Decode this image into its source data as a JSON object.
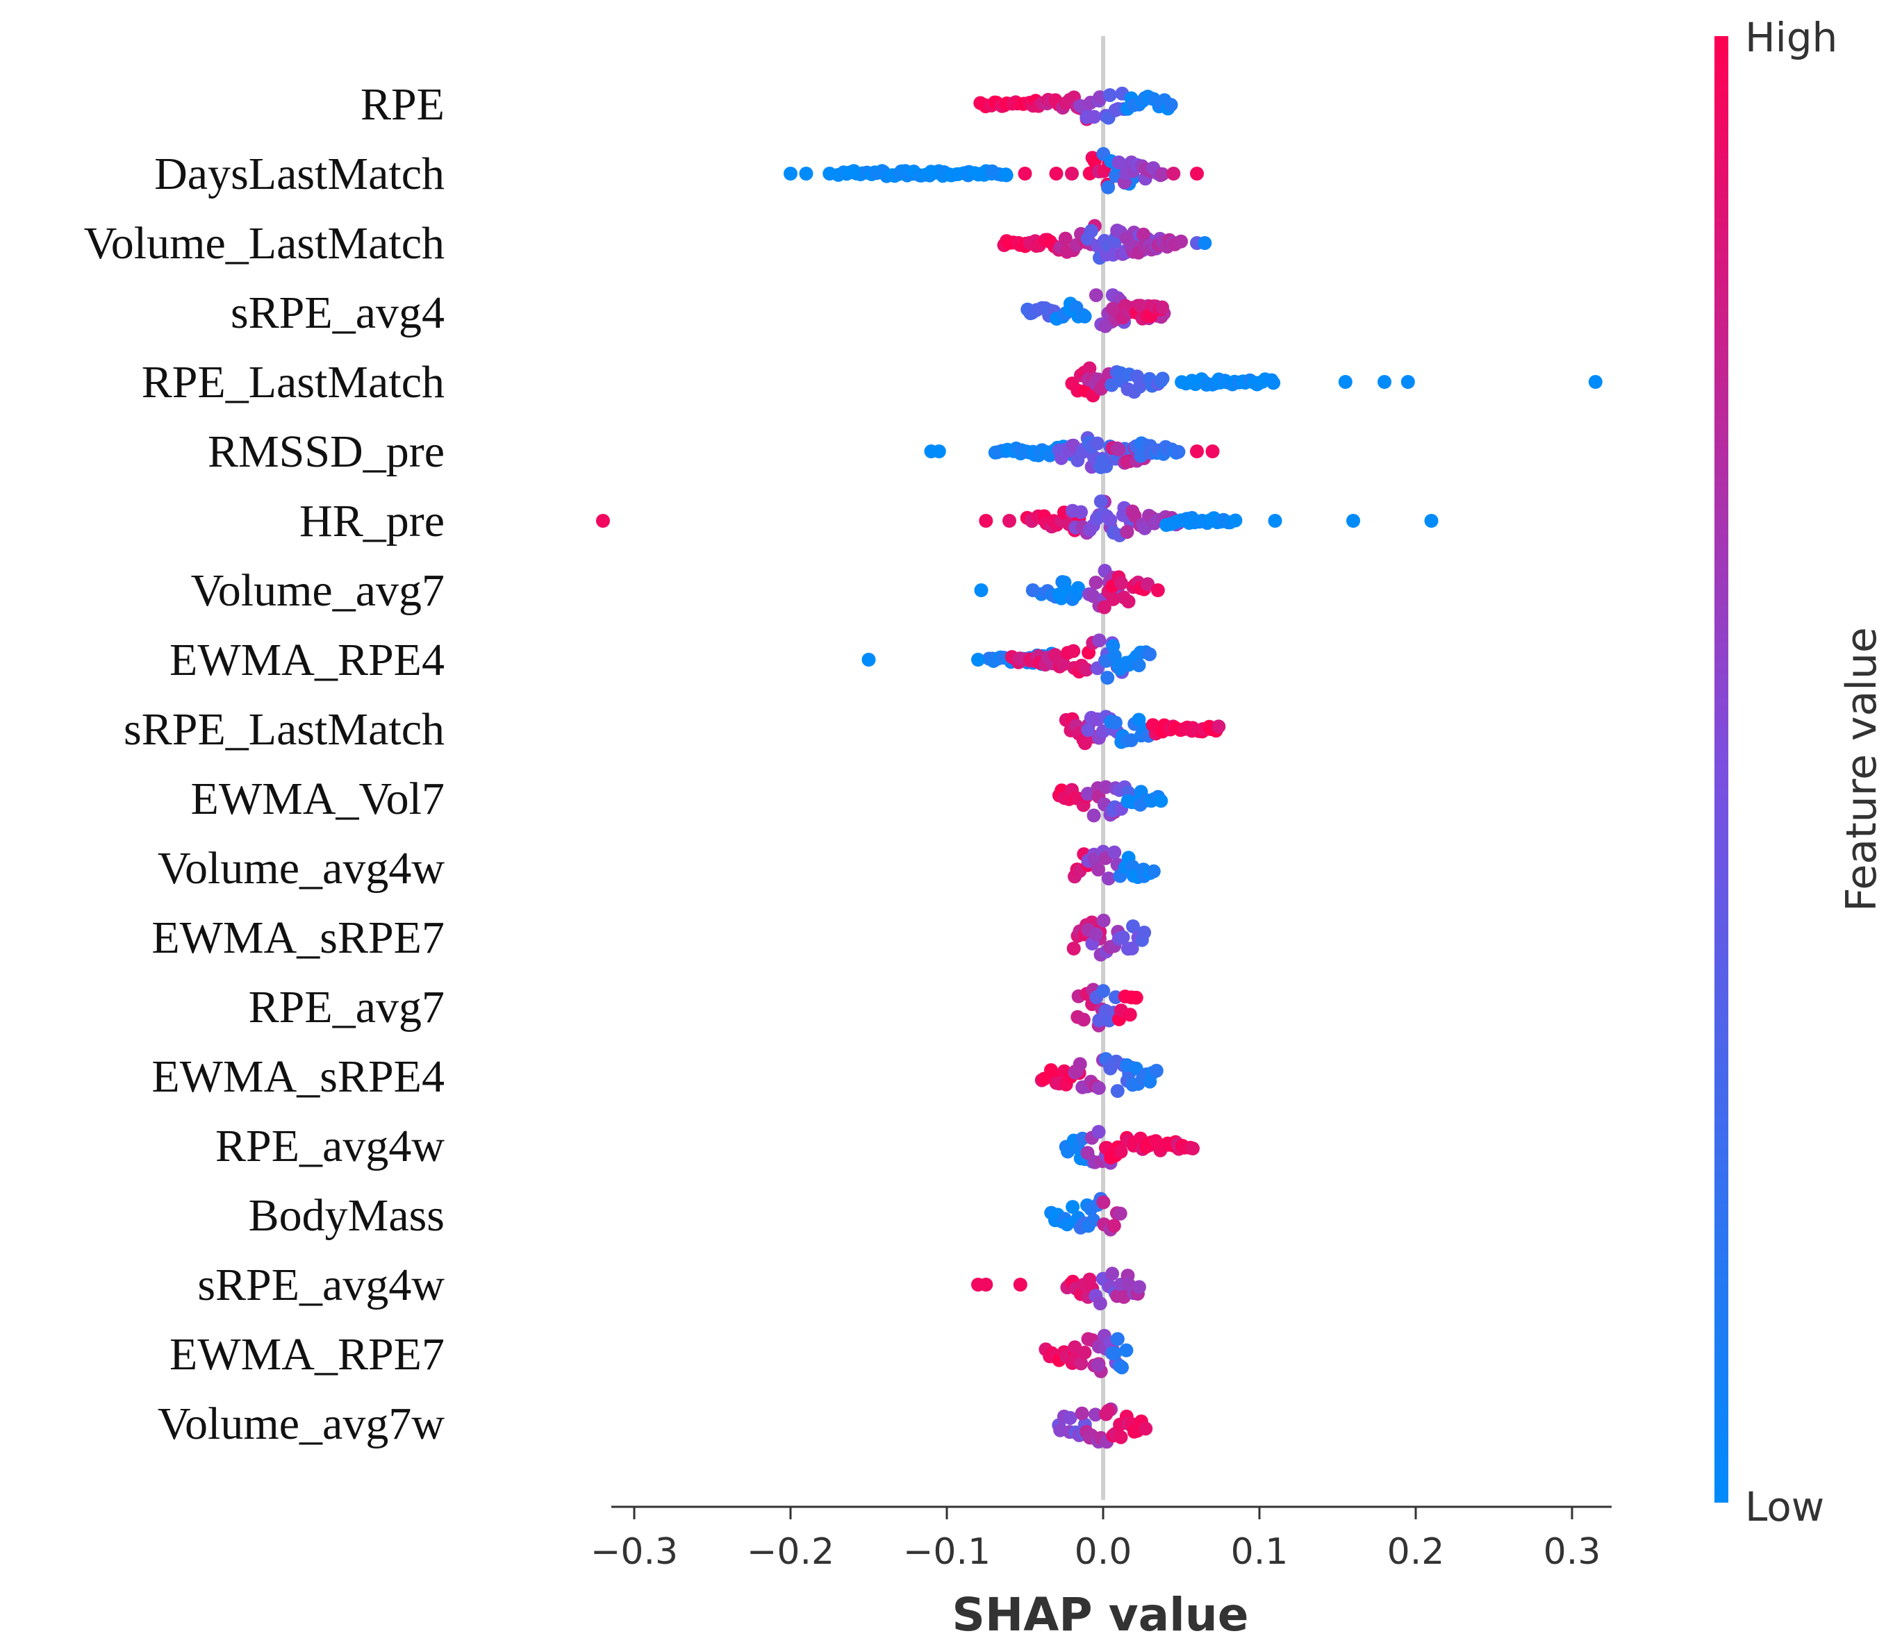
{
  "chart_data": {
    "type": "scatter",
    "subtype": "shap-beeswarm-summary",
    "xlabel": "SHAP value",
    "xlim": [
      -0.3,
      0.3
    ],
    "xticks": [
      "−0.3",
      "−0.2",
      "−0.1",
      "0.0",
      "0.1",
      "0.2",
      "0.3"
    ],
    "xtick_values": [
      -0.3,
      -0.2,
      -0.1,
      0.0,
      0.1,
      0.2,
      0.3
    ],
    "colorbar": {
      "title": "Feature value",
      "high_label": "High",
      "low_label": "Low",
      "high_color": "#ff0052",
      "low_color": "#008bfb"
    },
    "colors": {
      "zero_line": "#cfcfcf",
      "text": "#111111"
    },
    "features": [
      {
        "name": "RPE",
        "outliers": [],
        "dist": [
          [
            -0.08,
            -0.04,
            0.95
          ],
          [
            -0.04,
            -0.01,
            0.85
          ],
          [
            -0.015,
            0.0,
            0.55
          ],
          [
            0.0,
            0.015,
            0.35
          ],
          [
            0.015,
            0.045,
            0.05
          ]
        ]
      },
      {
        "name": "DaysLastMatch",
        "outliers": [
          [
            -0.2,
            0.0
          ],
          [
            -0.19,
            0.0
          ],
          [
            -0.175,
            0.0
          ],
          [
            -0.05,
            0.95
          ],
          [
            -0.03,
            0.95
          ],
          [
            -0.02,
            0.9
          ],
          [
            0.045,
            0.85
          ],
          [
            0.06,
            0.95
          ]
        ],
        "dist": [
          [
            -0.17,
            -0.06,
            0.0
          ],
          [
            -0.01,
            0.005,
            0.9
          ],
          [
            0.0,
            0.02,
            0.15
          ],
          [
            0.01,
            0.04,
            0.6
          ]
        ]
      },
      {
        "name": "Volume_LastMatch",
        "outliers": [
          [
            0.06,
            0.4
          ],
          [
            0.065,
            0.05
          ]
        ],
        "dist": [
          [
            -0.065,
            -0.03,
            0.95
          ],
          [
            -0.03,
            -0.005,
            0.8
          ],
          [
            -0.01,
            0.015,
            0.4
          ],
          [
            0.005,
            0.04,
            0.55
          ],
          [
            0.015,
            0.05,
            0.65
          ]
        ]
      },
      {
        "name": "sRPE_avg4",
        "outliers": [],
        "dist": [
          [
            -0.05,
            -0.03,
            0.3
          ],
          [
            -0.03,
            -0.01,
            0.05
          ],
          [
            -0.005,
            0.015,
            0.55
          ],
          [
            0.005,
            0.04,
            0.8
          ],
          [
            0.02,
            0.04,
            0.9
          ]
        ]
      },
      {
        "name": "RPE_LastMatch",
        "outliers": [
          [
            0.155,
            0.0
          ],
          [
            0.18,
            0.0
          ],
          [
            0.195,
            0.0
          ],
          [
            0.315,
            0.0
          ]
        ],
        "dist": [
          [
            -0.02,
            -0.005,
            0.95
          ],
          [
            -0.01,
            0.005,
            0.7
          ],
          [
            0.005,
            0.04,
            0.3
          ],
          [
            0.05,
            0.11,
            0.0
          ]
        ]
      },
      {
        "name": "RMSSD_pre",
        "outliers": [
          [
            -0.11,
            0.0
          ],
          [
            -0.105,
            0.0
          ],
          [
            0.06,
            0.95
          ],
          [
            0.07,
            0.95
          ]
        ],
        "dist": [
          [
            -0.07,
            -0.02,
            0.05
          ],
          [
            -0.03,
            0.0,
            0.5
          ],
          [
            -0.01,
            0.02,
            0.3
          ],
          [
            0.005,
            0.03,
            0.75
          ],
          [
            0.02,
            0.05,
            0.2
          ]
        ]
      },
      {
        "name": "HR_pre",
        "outliers": [
          [
            -0.32,
            0.95
          ],
          [
            -0.075,
            0.95
          ],
          [
            -0.06,
            0.9
          ],
          [
            0.11,
            0.0
          ],
          [
            0.16,
            0.0
          ],
          [
            0.21,
            0.0
          ]
        ],
        "dist": [
          [
            -0.05,
            -0.015,
            0.9
          ],
          [
            -0.02,
            0.005,
            0.6
          ],
          [
            -0.005,
            0.02,
            0.45
          ],
          [
            0.015,
            0.05,
            0.65
          ],
          [
            0.04,
            0.085,
            0.0
          ]
        ]
      },
      {
        "name": "Volume_avg7",
        "outliers": [
          [
            -0.078,
            0.0
          ],
          [
            -0.045,
            0.2
          ],
          [
            0.035,
            0.95
          ]
        ],
        "dist": [
          [
            -0.04,
            -0.02,
            0.15
          ],
          [
            -0.03,
            -0.015,
            0.0
          ],
          [
            -0.01,
            0.01,
            0.6
          ],
          [
            0.0,
            0.03,
            0.9
          ]
        ]
      },
      {
        "name": "EWMA_RPE4",
        "outliers": [
          [
            -0.15,
            0.0
          ],
          [
            -0.08,
            0.0
          ]
        ],
        "dist": [
          [
            -0.075,
            -0.03,
            0.1
          ],
          [
            -0.06,
            -0.03,
            0.85
          ],
          [
            -0.03,
            -0.005,
            0.9
          ],
          [
            -0.005,
            0.015,
            0.5
          ],
          [
            0.0,
            0.03,
            0.1
          ]
        ]
      },
      {
        "name": "sRPE_LastMatch",
        "outliers": [],
        "dist": [
          [
            -0.025,
            -0.005,
            0.85
          ],
          [
            -0.01,
            0.01,
            0.5
          ],
          [
            0.005,
            0.03,
            0.1
          ],
          [
            0.03,
            0.075,
            0.95
          ]
        ]
      },
      {
        "name": "EWMA_Vol7",
        "outliers": [],
        "dist": [
          [
            -0.03,
            -0.01,
            0.95
          ],
          [
            -0.01,
            0.01,
            0.65
          ],
          [
            0.005,
            0.02,
            0.4
          ],
          [
            0.015,
            0.038,
            0.05
          ]
        ]
      },
      {
        "name": "Volume_avg4w",
        "outliers": [],
        "dist": [
          [
            -0.02,
            -0.005,
            0.9
          ],
          [
            -0.01,
            0.01,
            0.6
          ],
          [
            0.01,
            0.033,
            0.05
          ]
        ]
      },
      {
        "name": "EWMA_sRPE7",
        "outliers": [],
        "dist": [
          [
            -0.02,
            0.0,
            0.85
          ],
          [
            -0.01,
            0.01,
            0.6
          ],
          [
            0.01,
            0.028,
            0.4
          ]
        ]
      },
      {
        "name": "RPE_avg7",
        "outliers": [],
        "dist": [
          [
            -0.018,
            0.0,
            0.8
          ],
          [
            -0.005,
            0.01,
            0.3
          ],
          [
            0.008,
            0.022,
            0.95
          ]
        ]
      },
      {
        "name": "EWMA_sRPE4",
        "outliers": [],
        "dist": [
          [
            -0.04,
            -0.015,
            0.95
          ],
          [
            -0.02,
            0.0,
            0.7
          ],
          [
            0.0,
            0.02,
            0.3
          ],
          [
            0.015,
            0.035,
            0.1
          ]
        ]
      },
      {
        "name": "RPE_avg4w",
        "outliers": [],
        "dist": [
          [
            -0.025,
            -0.005,
            0.1
          ],
          [
            -0.01,
            0.005,
            0.6
          ],
          [
            0.0,
            0.05,
            0.95
          ],
          [
            0.045,
            0.058,
            0.9
          ]
        ]
      },
      {
        "name": "BodyMass",
        "outliers": [],
        "dist": [
          [
            -0.035,
            -0.01,
            0.05
          ],
          [
            -0.015,
            0.0,
            0.2
          ],
          [
            -0.002,
            0.012,
            0.75
          ]
        ]
      },
      {
        "name": "sRPE_avg4w",
        "outliers": [
          [
            -0.08,
            0.95
          ],
          [
            -0.075,
            0.95
          ],
          [
            -0.053,
            0.95
          ]
        ],
        "dist": [
          [
            -0.025,
            -0.005,
            0.9
          ],
          [
            -0.005,
            0.01,
            0.5
          ],
          [
            0.005,
            0.025,
            0.65
          ]
        ]
      },
      {
        "name": "EWMA_RPE7",
        "outliers": [],
        "dist": [
          [
            -0.038,
            -0.015,
            0.95
          ],
          [
            -0.02,
            0.0,
            0.8
          ],
          [
            -0.005,
            0.01,
            0.55
          ],
          [
            0.005,
            0.015,
            0.2
          ]
        ]
      },
      {
        "name": "Volume_avg7w",
        "outliers": [],
        "dist": [
          [
            -0.03,
            -0.01,
            0.5
          ],
          [
            -0.015,
            0.005,
            0.7
          ],
          [
            0.0,
            0.028,
            0.9
          ]
        ]
      }
    ]
  }
}
